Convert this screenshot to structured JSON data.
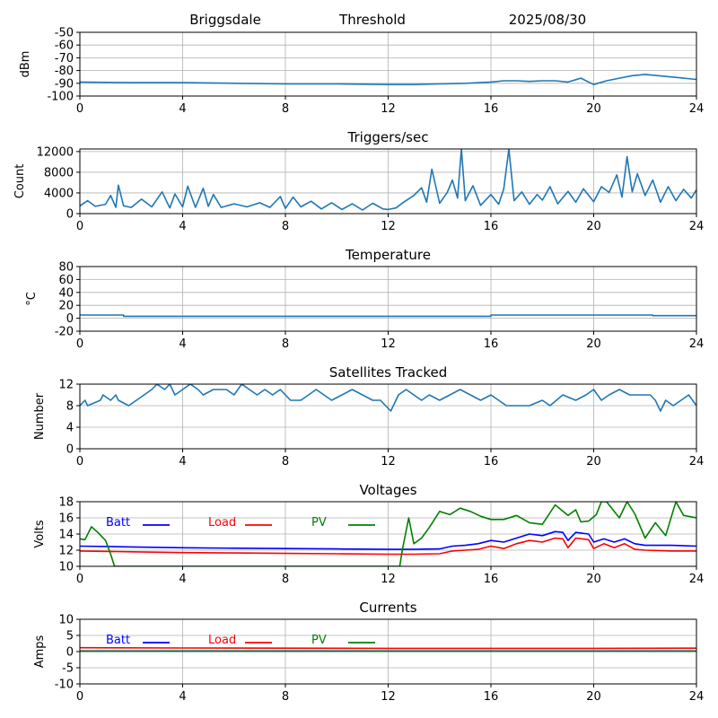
{
  "header": {
    "station": "Briggsdale",
    "mode": "Threshold",
    "date": "2025/08/30"
  },
  "legend_labels": {
    "batt": "Batt",
    "load": "Load",
    "pv": "PV"
  },
  "colors": {
    "default_line": "#1f77b4",
    "batt": "#0000ff",
    "load": "#ff0000",
    "pv": "#008000",
    "grid": "#b0b0b0"
  },
  "chart_data": [
    {
      "id": "threshold",
      "type": "line",
      "title": "",
      "xlabel": "",
      "ylabel": "dBm",
      "xlim": [
        0,
        24
      ],
      "ylim": [
        -100,
        -50
      ],
      "xticks": [
        0,
        4,
        8,
        12,
        16,
        20,
        24
      ],
      "yticks": [
        -100,
        -90,
        -80,
        -70,
        -60,
        -50
      ],
      "grid": true,
      "series": [
        {
          "color": "#1f77b4",
          "x": [
            0,
            2,
            4,
            6,
            8,
            10,
            12,
            13,
            14,
            15,
            16,
            16.5,
            17,
            17.5,
            18,
            18.5,
            19,
            19.5,
            20,
            20.5,
            21,
            21.5,
            22,
            22.5,
            23,
            23.5,
            24
          ],
          "values": [
            -89,
            -89.5,
            -89.5,
            -90,
            -90.5,
            -90.5,
            -91,
            -91,
            -90.5,
            -90,
            -89,
            -88,
            -88,
            -88.5,
            -88,
            -88,
            -89,
            -86,
            -91,
            -88,
            -86,
            -84,
            -83,
            -84,
            -85,
            -86,
            -87
          ]
        }
      ]
    },
    {
      "id": "triggers",
      "type": "line",
      "title": "Triggers/sec",
      "xlabel": "",
      "ylabel": "Count",
      "xlim": [
        0,
        24
      ],
      "ylim": [
        0,
        12500
      ],
      "xticks": [
        0,
        4,
        8,
        12,
        16,
        20,
        24
      ],
      "yticks": [
        0,
        4000,
        8000,
        12000
      ],
      "grid": true,
      "series": [
        {
          "color": "#1f77b4",
          "x": [
            0,
            0.3,
            0.6,
            1,
            1.2,
            1.4,
            1.5,
            1.7,
            2,
            2.4,
            2.8,
            3.2,
            3.5,
            3.7,
            4,
            4.2,
            4.5,
            4.8,
            5,
            5.2,
            5.5,
            6,
            6.5,
            7,
            7.4,
            7.8,
            8,
            8.3,
            8.6,
            9,
            9.4,
            9.8,
            10.2,
            10.6,
            11,
            11.4,
            11.8,
            12,
            12.3,
            12.6,
            13,
            13.3,
            13.5,
            13.7,
            14,
            14.3,
            14.5,
            14.7,
            14.85,
            15,
            15.3,
            15.6,
            16,
            16.3,
            16.5,
            16.7,
            16.9,
            17.2,
            17.5,
            17.8,
            18,
            18.3,
            18.6,
            19,
            19.3,
            19.6,
            20,
            20.3,
            20.6,
            20.9,
            21.1,
            21.3,
            21.5,
            21.7,
            22,
            22.3,
            22.6,
            22.9,
            23.2,
            23.5,
            23.8,
            24
          ],
          "values": [
            1500,
            2500,
            1400,
            1800,
            3500,
            1200,
            5500,
            1500,
            1200,
            2800,
            1300,
            4200,
            1100,
            3800,
            1300,
            5300,
            1200,
            4900,
            1400,
            3700,
            1200,
            1900,
            1300,
            2100,
            1200,
            3300,
            1000,
            3200,
            1300,
            2400,
            900,
            2100,
            800,
            1900,
            700,
            2000,
            900,
            800,
            1100,
            2200,
            3500,
            5000,
            2200,
            8600,
            2000,
            4100,
            6500,
            3000,
            12500,
            2500,
            5400,
            1600,
            3700,
            1800,
            4800,
            12500,
            2500,
            4200,
            1800,
            3700,
            2600,
            5200,
            1900,
            4300,
            2200,
            4800,
            2300,
            5200,
            4100,
            7500,
            3200,
            11000,
            4200,
            7700,
            3500,
            6500,
            2200,
            5200,
            2500,
            4700,
            3000,
            4600
          ]
        }
      ]
    },
    {
      "id": "temperature",
      "type": "line",
      "title": "Temperature",
      "xlabel": "",
      "ylabel": "°C",
      "xlim": [
        0,
        24
      ],
      "ylim": [
        -20,
        80
      ],
      "xticks": [
        0,
        4,
        8,
        12,
        16,
        20,
        24
      ],
      "yticks": [
        -20,
        0,
        20,
        40,
        60,
        80
      ],
      "grid": true,
      "series": [
        {
          "color": "#1f77b4",
          "x": [
            0,
            1.7,
            1.7,
            16,
            16,
            22.3,
            22.3,
            24
          ],
          "values": [
            5,
            5,
            3,
            3,
            5,
            5,
            4,
            4
          ]
        }
      ]
    },
    {
      "id": "satellites",
      "type": "line",
      "title": "Satellites Tracked",
      "xlabel": "",
      "ylabel": "Number",
      "xlim": [
        0,
        24
      ],
      "ylim": [
        0,
        12
      ],
      "xticks": [
        0,
        4,
        8,
        12,
        16,
        20,
        24
      ],
      "yticks": [
        0,
        4,
        8,
        12
      ],
      "grid": true,
      "series": [
        {
          "color": "#1f77b4",
          "x": [
            0,
            0.2,
            0.3,
            0.8,
            0.9,
            1.2,
            1.4,
            1.5,
            1.9,
            2.2,
            2.5,
            2.8,
            3.0,
            3.3,
            3.5,
            3.7,
            4.0,
            4.3,
            4.6,
            4.8,
            5.2,
            5.7,
            6.0,
            6.3,
            6.6,
            6.9,
            7.2,
            7.5,
            7.8,
            8.2,
            8.6,
            8.9,
            9.2,
            9.5,
            9.8,
            10.2,
            10.6,
            11.0,
            11.4,
            11.7,
            11.9,
            12.1,
            12.4,
            12.7,
            13.0,
            13.3,
            13.6,
            14.0,
            14.4,
            14.8,
            15.2,
            15.6,
            16.0,
            16.3,
            16.6,
            17.0,
            17.5,
            18.0,
            18.3,
            18.8,
            19.3,
            19.7,
            20.0,
            20.3,
            20.6,
            21.0,
            21.4,
            21.8,
            22.2,
            22.4,
            22.6,
            22.8,
            23.1,
            23.4,
            23.7,
            24
          ],
          "values": [
            8,
            9,
            8,
            9,
            10,
            9,
            10,
            9,
            8,
            9,
            10,
            11,
            12,
            11,
            12,
            10,
            11,
            12,
            11,
            10,
            11,
            11,
            10,
            12,
            11,
            10,
            11,
            10,
            11,
            9,
            9,
            10,
            11,
            10,
            9,
            10,
            11,
            10,
            9,
            9,
            8,
            7,
            10,
            11,
            10,
            9,
            10,
            9,
            10,
            11,
            10,
            9,
            10,
            9,
            8,
            8,
            8,
            9,
            8,
            10,
            9,
            10,
            11,
            9,
            10,
            11,
            10,
            10,
            10,
            9,
            7,
            9,
            8,
            9,
            10,
            8
          ]
        }
      ]
    },
    {
      "id": "voltages",
      "type": "line",
      "title": "Voltages",
      "xlabel": "",
      "ylabel": "Volts",
      "xlim": [
        0,
        24
      ],
      "ylim": [
        10,
        18
      ],
      "xticks": [
        0,
        4,
        8,
        12,
        16,
        20,
        24
      ],
      "yticks": [
        10,
        12,
        14,
        16,
        18
      ],
      "grid": true,
      "legend": "top-left",
      "series": [
        {
          "name": "Batt",
          "color": "#0000ff",
          "x": [
            0,
            2,
            4,
            6,
            8,
            10,
            12,
            13,
            14,
            14.5,
            15,
            15.5,
            16,
            16.5,
            17,
            17.5,
            18,
            18.5,
            18.8,
            19,
            19.3,
            19.8,
            20,
            20.4,
            20.8,
            21.2,
            21.6,
            22,
            23,
            24
          ],
          "values": [
            12.5,
            12.4,
            12.3,
            12.25,
            12.2,
            12.15,
            12.1,
            12.1,
            12.15,
            12.5,
            12.6,
            12.8,
            13.2,
            13.0,
            13.5,
            14.0,
            13.8,
            14.3,
            14.2,
            13.2,
            14.2,
            14.0,
            13.0,
            13.4,
            13.0,
            13.4,
            12.8,
            12.6,
            12.6,
            12.5
          ]
        },
        {
          "name": "Load",
          "color": "#ff0000",
          "x": [
            0,
            2,
            4,
            6,
            8,
            10,
            12,
            13,
            14,
            14.5,
            15,
            15.5,
            16,
            16.5,
            17,
            17.5,
            18,
            18.5,
            18.8,
            19,
            19.3,
            19.8,
            20,
            20.4,
            20.8,
            21.2,
            21.6,
            22,
            23,
            24
          ],
          "values": [
            11.9,
            11.8,
            11.7,
            11.65,
            11.6,
            11.55,
            11.5,
            11.5,
            11.55,
            11.9,
            12.0,
            12.1,
            12.5,
            12.2,
            12.8,
            13.2,
            13.0,
            13.5,
            13.4,
            12.3,
            13.5,
            13.3,
            12.2,
            12.8,
            12.3,
            12.8,
            12.1,
            12.0,
            11.9,
            11.9
          ]
        },
        {
          "name": "PV",
          "color": "#008000",
          "x": [
            0,
            0.2,
            0.45,
            0.7,
            1.0,
            1.2,
            1.35,
            12.45,
            12.55,
            12.8,
            13.0,
            13.3,
            13.6,
            14.0,
            14.4,
            14.8,
            15.2,
            15.6,
            16.0,
            16.5,
            17.0,
            17.5,
            18.0,
            18.5,
            19.0,
            19.3,
            19.5,
            19.8,
            20.1,
            20.3,
            20.5,
            21.0,
            21.3,
            21.6,
            22.0,
            22.4,
            22.8,
            23.2,
            23.5,
            24
          ],
          "values": [
            13.4,
            13.3,
            14.9,
            14.2,
            13.2,
            11.5,
            10.0,
            10.0,
            12.0,
            16.0,
            12.8,
            13.5,
            14.8,
            16.8,
            16.4,
            17.2,
            16.8,
            16.2,
            15.8,
            15.8,
            16.3,
            15.4,
            15.2,
            17.6,
            16.3,
            17.0,
            15.5,
            15.6,
            16.4,
            18.0,
            18.0,
            16.0,
            18.0,
            16.5,
            13.5,
            15.4,
            13.8,
            18.0,
            16.3,
            16.0
          ]
        }
      ]
    },
    {
      "id": "currents",
      "type": "line",
      "title": "Currents",
      "xlabel": "",
      "ylabel": "Amps",
      "xlim": [
        0,
        24
      ],
      "ylim": [
        -10,
        10
      ],
      "xticks": [
        0,
        4,
        8,
        12,
        16,
        20,
        24
      ],
      "yticks": [
        -10,
        -5,
        0,
        5,
        10
      ],
      "grid": true,
      "legend": "top-left",
      "series": [
        {
          "name": "Batt",
          "color": "#0000ff",
          "x": [
            0,
            24
          ],
          "values": [
            0.2,
            0.2
          ]
        },
        {
          "name": "Load",
          "color": "#ff0000",
          "x": [
            0,
            4,
            8,
            12,
            16,
            20,
            24
          ],
          "values": [
            1.2,
            1.1,
            1.05,
            1.0,
            1.0,
            1.0,
            1.05
          ]
        },
        {
          "name": "PV",
          "color": "#008000",
          "x": [
            0,
            24
          ],
          "values": [
            0.1,
            0.1
          ]
        }
      ]
    }
  ]
}
